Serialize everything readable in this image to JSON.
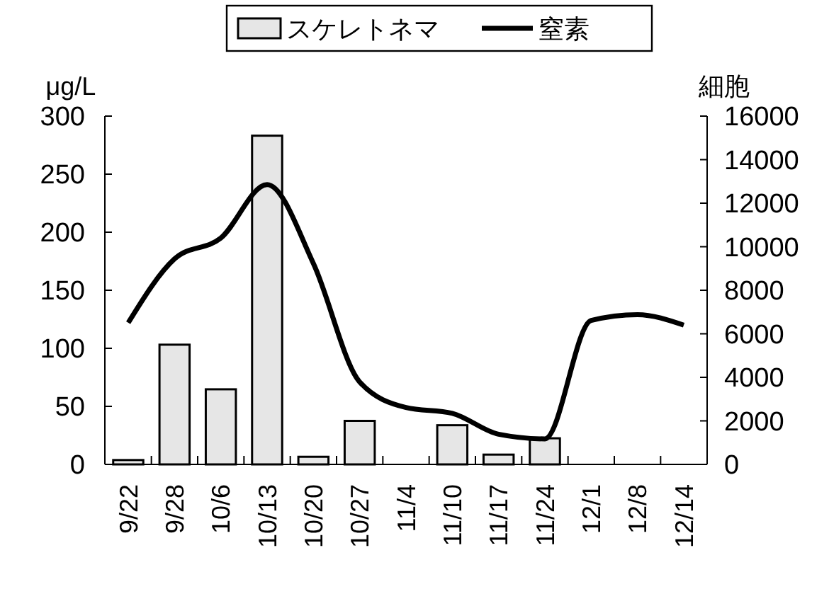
{
  "chart_data": {
    "type": "bar",
    "ylabel": "μg/L",
    "y2label": "細胞",
    "categories": [
      "9/22",
      "9/28",
      "10/6",
      "10/13",
      "10/20",
      "10/27",
      "11/4",
      "11/10",
      "11/17",
      "11/24",
      "12/1",
      "12/8",
      "12/14"
    ],
    "series": [
      {
        "name": "スケレトネマ",
        "axis": "y2",
        "color": "#e6e6e6",
        "values": [
          200,
          5500,
          3450,
          15100,
          350,
          2000,
          null,
          1800,
          450,
          1200,
          null,
          null,
          null
        ]
      },
      {
        "name": "窒素",
        "type": "line",
        "color": "#000000",
        "values": [
          122,
          177,
          195,
          241,
          173,
          71,
          49,
          44,
          26,
          22,
          124,
          129,
          120
        ]
      }
    ],
    "ylim": [
      0,
      300
    ],
    "yticks": [
      0,
      50,
      100,
      150,
      200,
      250,
      300
    ],
    "y2lim": [
      0,
      16000
    ],
    "y2ticks": [
      0,
      2000,
      4000,
      6000,
      8000,
      10000,
      12000,
      14000,
      16000
    ],
    "legend": "top",
    "grid": false,
    "marker": "none",
    "line_style": "solid"
  }
}
